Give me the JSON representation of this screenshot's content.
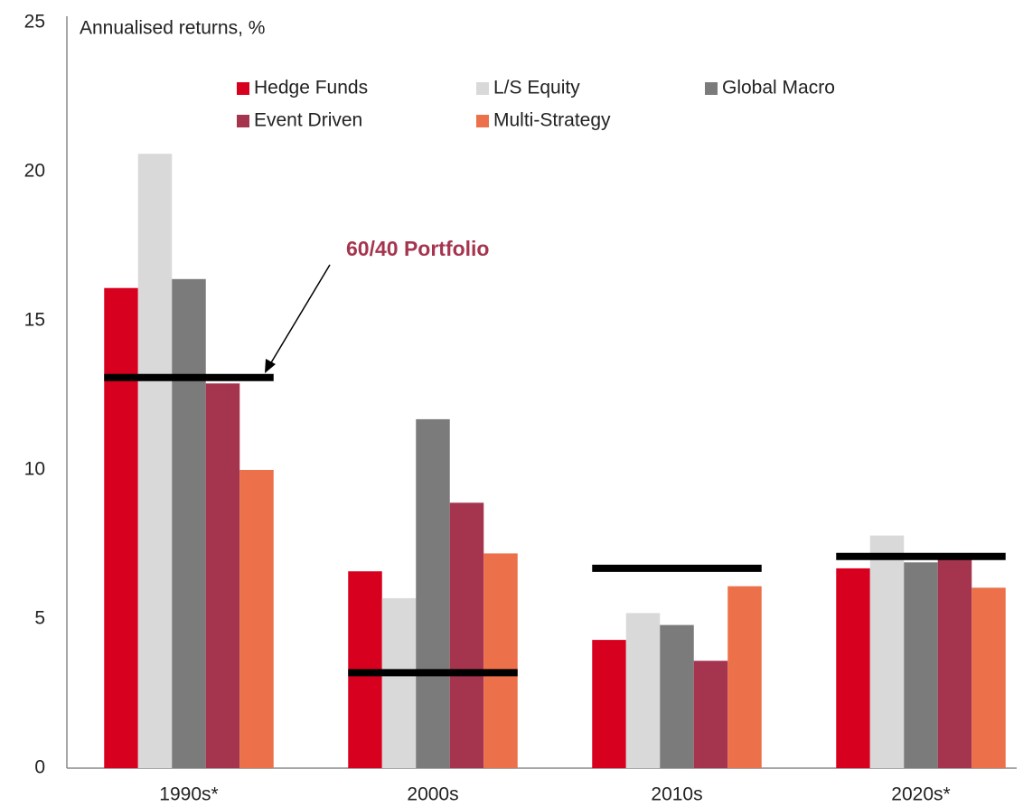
{
  "chart_data": {
    "type": "bar",
    "y_label": "Annualised returns, %",
    "categories": [
      "1990s*",
      "2000s",
      "2010s",
      "2020s*"
    ],
    "series": [
      {
        "name": "Hedge Funds",
        "color": "#d7001e",
        "values": [
          16.1,
          6.6,
          4.3,
          6.7
        ]
      },
      {
        "name": "L/S Equity",
        "color": "#d9d9d9",
        "values": [
          20.6,
          5.7,
          5.2,
          7.8
        ]
      },
      {
        "name": "Global Macro",
        "color": "#7b7b7b",
        "values": [
          16.4,
          11.7,
          4.8,
          6.9
        ]
      },
      {
        "name": "Event Driven",
        "color": "#a5354f",
        "values": [
          12.9,
          8.9,
          3.6,
          7.0
        ]
      },
      {
        "name": "Multi-Strategy",
        "color": "#ec7049",
        "values": [
          10.0,
          7.2,
          6.1,
          6.05
        ]
      }
    ],
    "benchmark": {
      "name": "60/40 Portfolio",
      "color": "#000000",
      "values": [
        13.1,
        3.2,
        6.7,
        7.1
      ]
    },
    "ylim": [
      0,
      25
    ],
    "yticks": [
      0,
      5,
      10,
      15,
      20,
      25
    ],
    "grid": false
  }
}
